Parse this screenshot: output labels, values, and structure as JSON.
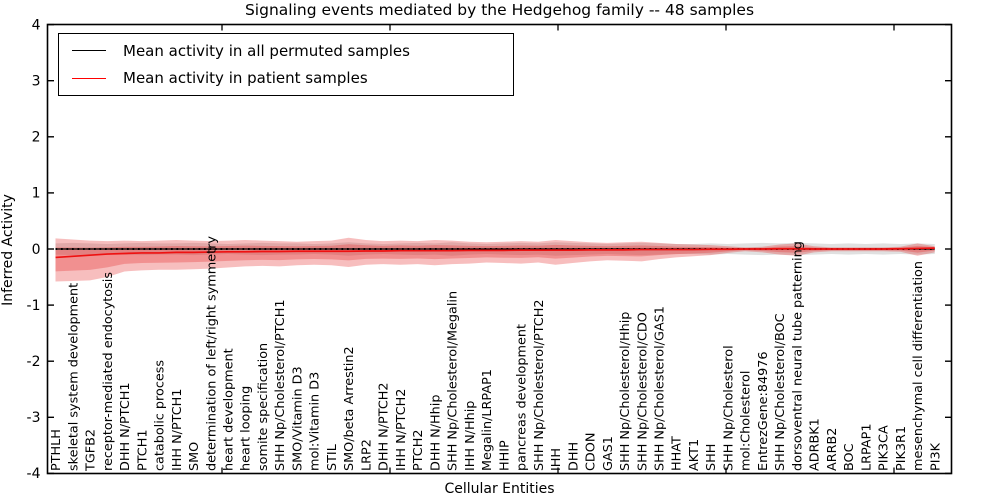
{
  "chart": {
    "title": "Signaling events mediated by the Hedgehog family -- 48 samples",
    "xlabel": "Cellular Entities",
    "ylabel": "Inferred Activity",
    "legend": [
      {
        "label": "Mean activity in all permuted samples",
        "color": "#000000"
      },
      {
        "label": "Mean activity in patient samples",
        "color": "#ff0000"
      }
    ]
  },
  "chart_data": {
    "type": "line",
    "title": "Signaling events mediated by the Hedgehog family -- 48 samples",
    "xlabel": "Cellular Entities",
    "ylabel": "Inferred Activity",
    "ylim": [
      -4,
      4
    ],
    "ytick_labels": [
      "4",
      "3",
      "2",
      "1",
      "0",
      "-1",
      "-2",
      "-3",
      "-4"
    ],
    "yticks": [
      4,
      3,
      2,
      1,
      0,
      -1,
      -2,
      -3,
      -4
    ],
    "grid": false,
    "legend_position": "upper-left",
    "sample_count": 48,
    "colors": {
      "permuted_line": "#000000",
      "patient_line": "#ee1111",
      "patient_band": "rgba(228,40,40,0.30)",
      "permuted_band": "rgba(0,0,0,0.12)"
    },
    "categories": [
      "PTHLH",
      "skeletal system development",
      "TGFB2",
      "receptor-mediated endocytosis",
      "DHH N/PTCH1",
      "PTCH1",
      "catabolic process",
      "IHH N/PTCH1",
      "SMO",
      "determination of left/right symmetry",
      "heart development",
      "heart looping",
      "somite specification",
      "SHH Np/Cholesterol/PTCH1",
      "SMO/Vitamin D3",
      "mol:Vitamin D3",
      "STIL",
      "SMO/beta Arrestin2",
      "LRP2",
      "DHH N/PTCH2",
      "IHH N/PTCH2",
      "PTCH2",
      "DHH N/Hhip",
      "SHH Np/Cholesterol/Megalin",
      "IHH N/Hhip",
      "Megalin/LRPAP1",
      "HHIP",
      "pancreas development",
      "SHH Np/Cholesterol/PTCH2",
      "IHH",
      "DHH",
      "CDON",
      "GAS1",
      "SHH Np/Cholesterol/Hhip",
      "SHH Np/Cholesterol/CDO",
      "SHH Np/Cholesterol/GAS1",
      "HHAT",
      "AKT1",
      "SHH",
      "SHH Np/Cholesterol",
      "mol:Cholesterol",
      "EntrezGene:84976",
      "SHH Np/Cholesterol/BOC",
      "dorsoventral neural tube patterning",
      "ADRBK1",
      "ARRB2",
      "BOC",
      "LRPAP1",
      "PIK3CA",
      "PIK3R1",
      "mesenchymal cell differentiation",
      "PI3K"
    ],
    "series": [
      {
        "name": "Mean activity in all permuted samples",
        "color": "#000000",
        "style": "solid-with-dotted-overlay",
        "values": [
          0,
          0,
          0,
          0,
          0,
          0,
          0,
          0,
          0,
          0,
          0,
          0,
          0,
          0,
          0,
          0,
          0,
          0,
          0,
          0,
          0,
          0,
          0,
          0,
          0,
          0,
          0,
          0,
          0,
          0,
          0,
          0,
          0,
          0,
          0,
          0,
          0,
          0,
          0,
          0,
          0,
          0,
          0,
          0,
          0,
          0,
          0,
          0,
          0,
          0,
          0,
          0
        ]
      },
      {
        "name": "Mean activity in patient samples",
        "color": "#ee1111",
        "style": "solid",
        "values": [
          -0.15,
          -0.13,
          -0.11,
          -0.09,
          -0.08,
          -0.07,
          -0.07,
          -0.06,
          -0.06,
          -0.055,
          -0.05,
          -0.05,
          -0.045,
          -0.045,
          -0.04,
          -0.04,
          -0.04,
          -0.04,
          -0.035,
          -0.035,
          -0.03,
          -0.03,
          -0.03,
          -0.03,
          -0.025,
          -0.025,
          -0.025,
          -0.02,
          -0.02,
          -0.02,
          -0.02,
          -0.015,
          -0.015,
          -0.015,
          -0.01,
          -0.01,
          -0.01,
          -0.01,
          -0.005,
          -0.005,
          0,
          0,
          0.005,
          0.005,
          0,
          0,
          0,
          0,
          0,
          0.005,
          0.01,
          0.015
        ]
      }
    ],
    "bands": [
      {
        "name": "patient samples spread",
        "color": "rgba(228,40,40,0.30)",
        "upper": [
          0.19,
          0.17,
          0.15,
          0.14,
          0.15,
          0.14,
          0.15,
          0.16,
          0.15,
          0.14,
          0.15,
          0.16,
          0.15,
          0.14,
          0.13,
          0.14,
          0.15,
          0.2,
          0.16,
          0.14,
          0.15,
          0.14,
          0.16,
          0.15,
          0.13,
          0.12,
          0.13,
          0.14,
          0.13,
          0.16,
          0.14,
          0.12,
          0.11,
          0.12,
          0.13,
          0.11,
          0.09,
          0.08,
          0.07,
          0.05,
          0.03,
          0.04,
          0.08,
          0.1,
          0.05,
          0.03,
          0.03,
          0.03,
          0.03,
          0.04,
          0.1,
          0.05
        ],
        "lower": [
          -0.58,
          -0.57,
          -0.56,
          -0.5,
          -0.4,
          -0.38,
          -0.37,
          -0.37,
          -0.36,
          -0.35,
          -0.33,
          -0.31,
          -0.3,
          -0.31,
          -0.29,
          -0.28,
          -0.29,
          -0.32,
          -0.28,
          -0.27,
          -0.28,
          -0.27,
          -0.29,
          -0.27,
          -0.26,
          -0.24,
          -0.25,
          -0.26,
          -0.24,
          -0.28,
          -0.25,
          -0.22,
          -0.2,
          -0.21,
          -0.22,
          -0.18,
          -0.15,
          -0.13,
          -0.11,
          -0.07,
          -0.04,
          -0.06,
          -0.1,
          -0.12,
          -0.06,
          -0.04,
          -0.04,
          -0.04,
          -0.04,
          -0.05,
          -0.12,
          -0.06
        ]
      },
      {
        "name": "permuted samples spread",
        "color": "rgba(0,0,0,0.12)",
        "upper": [
          0.1,
          0.11,
          0.1,
          0.09,
          0.1,
          0.11,
          0.1,
          0.1,
          0.11,
          0.1,
          0.09,
          0.1,
          0.11,
          0.1,
          0.1,
          0.09,
          0.1,
          0.12,
          0.1,
          0.09,
          0.1,
          0.11,
          0.1,
          0.12,
          0.1,
          0.09,
          0.1,
          0.11,
          0.1,
          0.12,
          0.11,
          0.1,
          0.09,
          0.1,
          0.11,
          0.1,
          0.09,
          0.09,
          0.1,
          0.09,
          0.1,
          0.11,
          0.1,
          0.11,
          0.1,
          0.09,
          0.1,
          0.09,
          0.1,
          0.09,
          0.1,
          0.09
        ],
        "lower": [
          -0.1,
          -0.11,
          -0.1,
          -0.09,
          -0.1,
          -0.11,
          -0.1,
          -0.1,
          -0.11,
          -0.1,
          -0.09,
          -0.1,
          -0.11,
          -0.1,
          -0.1,
          -0.09,
          -0.1,
          -0.12,
          -0.1,
          -0.09,
          -0.1,
          -0.11,
          -0.1,
          -0.12,
          -0.1,
          -0.09,
          -0.1,
          -0.11,
          -0.1,
          -0.12,
          -0.11,
          -0.1,
          -0.09,
          -0.1,
          -0.11,
          -0.1,
          -0.09,
          -0.09,
          -0.1,
          -0.09,
          -0.1,
          -0.11,
          -0.1,
          -0.11,
          -0.1,
          -0.09,
          -0.1,
          -0.09,
          -0.1,
          -0.09,
          -0.1,
          -0.09
        ]
      }
    ]
  }
}
